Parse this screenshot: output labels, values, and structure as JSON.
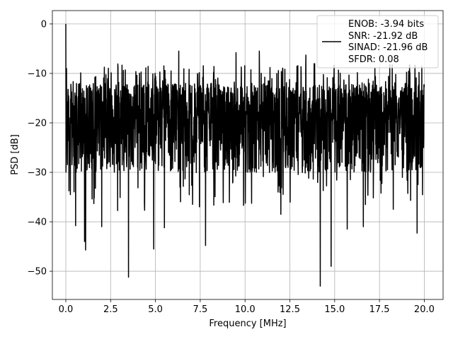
{
  "chart_data": {
    "type": "line",
    "xlabel": "Frequency [MHz]",
    "ylabel": "PSD [dB]",
    "xlim": [
      -0.75,
      21.05
    ],
    "ylim": [
      -55.7,
      2.7
    ],
    "xticks": [
      0.0,
      2.5,
      5.0,
      7.5,
      10.0,
      12.5,
      15.0,
      17.5,
      20.0
    ],
    "xtick_labels": [
      "0.0",
      "2.5",
      "5.0",
      "7.5",
      "10.0",
      "12.5",
      "15.0",
      "17.5",
      "20.0"
    ],
    "yticks": [
      0,
      -10,
      -20,
      -30,
      -40,
      -50
    ],
    "ytick_labels": [
      "0",
      "−10",
      "−20",
      "−30",
      "−40",
      "−50"
    ],
    "grid": true,
    "legend_position": "upper-right",
    "legend": [
      "ENOB: -3.94 bits",
      "SNR: -21.92 dB",
      "SINAD: -21.96 dB",
      "SFDR: 0.08"
    ],
    "colors": {
      "line": "#000000",
      "grid": "#b0b0b0",
      "frame": "#000000"
    },
    "series": [
      {
        "x_start": 0.0,
        "x_end": 20.0,
        "num_points": 2048,
        "peak": {
          "x": 0.0,
          "y": 0.0
        },
        "typical_range": [
          -30,
          -12
        ],
        "notable_points": [
          {
            "x": 0.0,
            "y": 0.0
          },
          {
            "x": 0.04,
            "y": -9.0
          },
          {
            "x": 0.25,
            "y": -34.5
          },
          {
            "x": 0.55,
            "y": -40.8
          },
          {
            "x": 1.05,
            "y": -44.0
          },
          {
            "x": 1.1,
            "y": -45.7
          },
          {
            "x": 2.0,
            "y": -41.0
          },
          {
            "x": 3.5,
            "y": -51.2
          },
          {
            "x": 4.9,
            "y": -45.5
          },
          {
            "x": 5.5,
            "y": -41.2
          },
          {
            "x": 6.3,
            "y": -5.5
          },
          {
            "x": 7.8,
            "y": -44.8
          },
          {
            "x": 9.5,
            "y": -5.8
          },
          {
            "x": 10.8,
            "y": -5.5
          },
          {
            "x": 12.0,
            "y": -38.5
          },
          {
            "x": 13.4,
            "y": -6.3
          },
          {
            "x": 14.2,
            "y": -53.0
          },
          {
            "x": 14.8,
            "y": -49.0
          },
          {
            "x": 15.7,
            "y": -41.5
          },
          {
            "x": 16.6,
            "y": -41.0
          },
          {
            "x": 19.6,
            "y": -42.3
          },
          {
            "x": 20.0,
            "y": -12.8
          }
        ]
      }
    ]
  }
}
